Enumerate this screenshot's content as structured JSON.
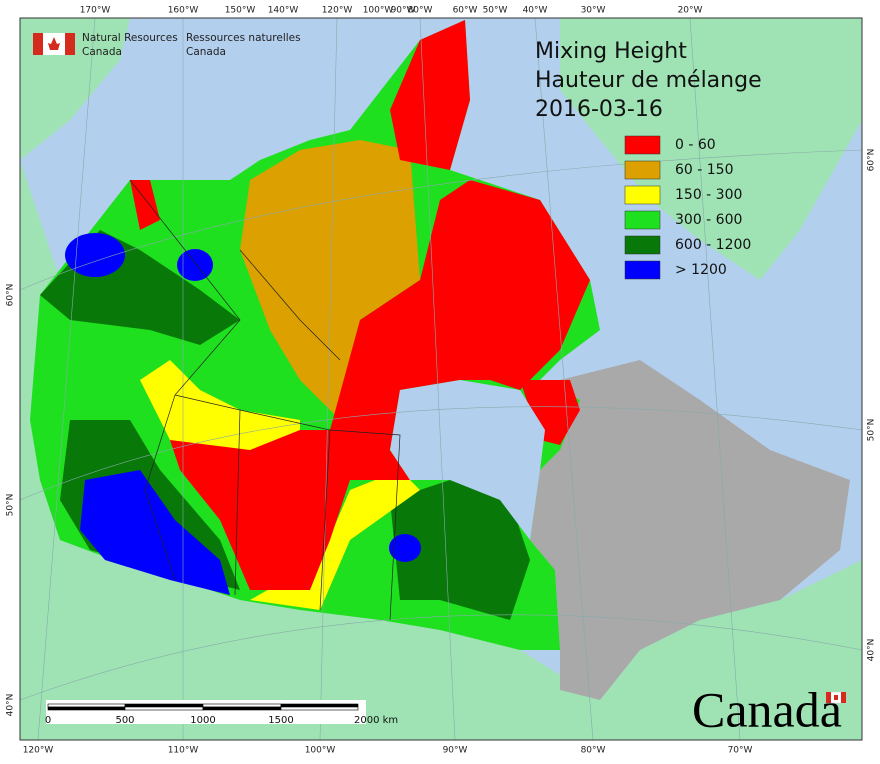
{
  "agency": {
    "en_line1": "Natural Resources",
    "en_line2": "Canada",
    "fr_line1": "Ressources naturelles",
    "fr_line2": "Canada"
  },
  "title": {
    "en": "Mixing Height",
    "fr": "Hauteur de mélange",
    "date": "2016-03-16"
  },
  "legend": [
    {
      "label": "0 - 60",
      "color": "#ff0000"
    },
    {
      "label": "60 - 150",
      "color": "#dca000"
    },
    {
      "label": "150 - 300",
      "color": "#ffff00"
    },
    {
      "label": "300 - 600",
      "color": "#1ee01e"
    },
    {
      "label": "600 - 1200",
      "color": "#087808"
    },
    {
      "label": "> 1200",
      "color": "#0000ff"
    }
  ],
  "scale_bar": {
    "labels": [
      "0",
      "500",
      "1000",
      "1500",
      "2000 km"
    ]
  },
  "graticule": {
    "top": [
      "170°W",
      "160°W",
      "150°W",
      "140°W",
      "120°W",
      "100°W",
      "90°W",
      "80°W",
      "60°W",
      "50°W",
      "40°W",
      "30°W",
      "20°W"
    ],
    "bottom": [
      "120°W",
      "110°W",
      "100°W",
      "90°W",
      "80°W",
      "70°W"
    ],
    "left": [
      "60°N",
      "50°N",
      "40°N"
    ],
    "right": [
      "60°N",
      "50°N",
      "40°N"
    ]
  },
  "wordmark": "Canada"
}
